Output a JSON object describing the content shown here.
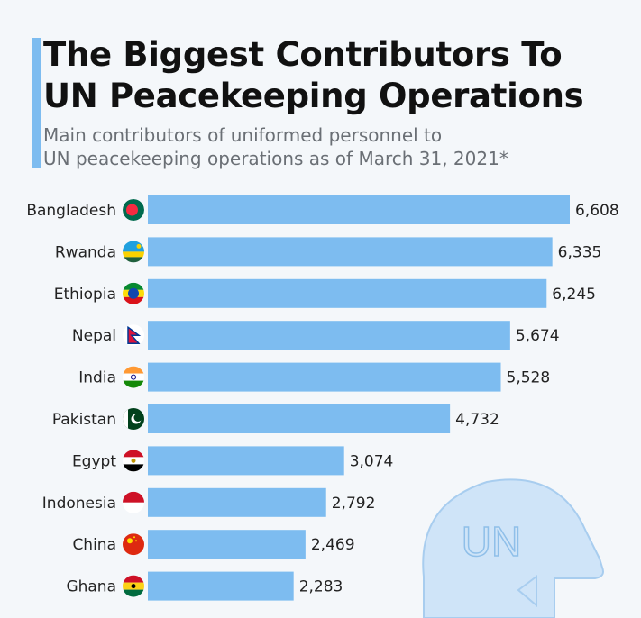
{
  "header": {
    "title_line1": "The Biggest Contributors To",
    "title_line2": "UN Peacekeeping Operations",
    "subtitle_line1": "Main contributors of uniformed personnel to",
    "subtitle_line2": "UN peacekeeping operations as of March 31, 2021*"
  },
  "colors": {
    "bar": "#7dbcf0",
    "accent": "#7dbcf0",
    "helmet": "#cfe4f8"
  },
  "decoration": {
    "helmet_text": "UN"
  },
  "chart_data": {
    "type": "bar",
    "orientation": "horizontal",
    "title": "The Biggest Contributors To UN Peacekeeping Operations",
    "categories": [
      "Bangladesh",
      "Rwanda",
      "Ethiopia",
      "Nepal",
      "India",
      "Pakistan",
      "Egypt",
      "Indonesia",
      "China",
      "Ghana"
    ],
    "values": [
      6608,
      6335,
      6245,
      5674,
      5528,
      4732,
      3074,
      2792,
      2469,
      2283
    ],
    "value_labels": [
      "6,608",
      "6,335",
      "6,245",
      "5,674",
      "5,528",
      "4,732",
      "3,074",
      "2,792",
      "2,469",
      "2,283"
    ],
    "xlim": [
      0,
      6608
    ],
    "grid": false,
    "legend": "none"
  }
}
